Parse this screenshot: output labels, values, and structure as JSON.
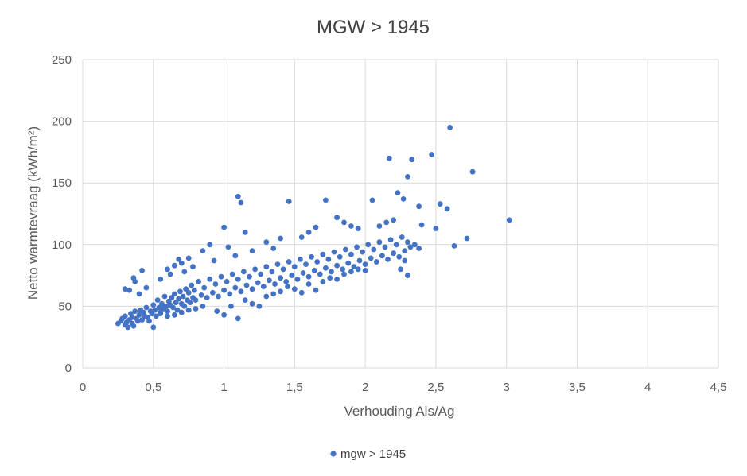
{
  "chart_data": {
    "type": "scatter",
    "title": "MGW > 1945",
    "xlabel": "Verhouding Als/Ag",
    "ylabel": "Netto warmtevraag (kWh/m²)",
    "xlim": [
      0,
      4.5
    ],
    "ylim": [
      0,
      250
    ],
    "x_ticks": [
      "0",
      "0,5",
      "1",
      "1,5",
      "2",
      "2,5",
      "3",
      "3,5",
      "4",
      "4,5"
    ],
    "y_ticks": [
      "0",
      "50",
      "100",
      "150",
      "200",
      "250"
    ],
    "x_tick_values": [
      0,
      0.5,
      1,
      1.5,
      2,
      2.5,
      3,
      3.5,
      4,
      4.5
    ],
    "y_tick_values": [
      0,
      50,
      100,
      150,
      200,
      250
    ],
    "grid": true,
    "legend_position": "bottom",
    "series": [
      {
        "name": "mgw > 1945",
        "color": "#4472c4",
        "points": [
          [
            0.25,
            36
          ],
          [
            0.27,
            38
          ],
          [
            0.28,
            40
          ],
          [
            0.3,
            35
          ],
          [
            0.3,
            42
          ],
          [
            0.31,
            37
          ],
          [
            0.32,
            33
          ],
          [
            0.33,
            39
          ],
          [
            0.34,
            44
          ],
          [
            0.35,
            36
          ],
          [
            0.35,
            41
          ],
          [
            0.36,
            34
          ],
          [
            0.37,
            46
          ],
          [
            0.38,
            40
          ],
          [
            0.39,
            38
          ],
          [
            0.4,
            43
          ],
          [
            0.41,
            47
          ],
          [
            0.42,
            39
          ],
          [
            0.43,
            45
          ],
          [
            0.44,
            42
          ],
          [
            0.45,
            49
          ],
          [
            0.46,
            41
          ],
          [
            0.47,
            38
          ],
          [
            0.48,
            46
          ],
          [
            0.49,
            44
          ],
          [
            0.5,
            51
          ],
          [
            0.5,
            33
          ],
          [
            0.51,
            47
          ],
          [
            0.52,
            42
          ],
          [
            0.53,
            55
          ],
          [
            0.54,
            49
          ],
          [
            0.55,
            45
          ],
          [
            0.56,
            52
          ],
          [
            0.57,
            48
          ],
          [
            0.58,
            58
          ],
          [
            0.59,
            50
          ],
          [
            0.6,
            46
          ],
          [
            0.61,
            54
          ],
          [
            0.62,
            51
          ],
          [
            0.63,
            57
          ],
          [
            0.64,
            49
          ],
          [
            0.65,
            60
          ],
          [
            0.66,
            53
          ],
          [
            0.67,
            47
          ],
          [
            0.68,
            56
          ],
          [
            0.69,
            62
          ],
          [
            0.7,
            52
          ],
          [
            0.71,
            58
          ],
          [
            0.72,
            50
          ],
          [
            0.73,
            64
          ],
          [
            0.74,
            55
          ],
          [
            0.75,
            61
          ],
          [
            0.76,
            53
          ],
          [
            0.77,
            67
          ],
          [
            0.78,
            57
          ],
          [
            0.79,
            63
          ],
          [
            0.8,
            55
          ],
          [
            0.82,
            70
          ],
          [
            0.84,
            59
          ],
          [
            0.86,
            65
          ],
          [
            0.88,
            57
          ],
          [
            0.9,
            72
          ],
          [
            0.92,
            61
          ],
          [
            0.94,
            68
          ],
          [
            0.96,
            58
          ],
          [
            0.98,
            74
          ],
          [
            1.0,
            63
          ],
          [
            1.02,
            70
          ],
          [
            1.04,
            60
          ],
          [
            1.06,
            76
          ],
          [
            1.08,
            65
          ],
          [
            1.1,
            72
          ],
          [
            1.12,
            62
          ],
          [
            1.14,
            78
          ],
          [
            1.16,
            67
          ],
          [
            1.18,
            74
          ],
          [
            1.2,
            64
          ],
          [
            1.22,
            80
          ],
          [
            1.24,
            69
          ],
          [
            1.26,
            76
          ],
          [
            1.28,
            66
          ],
          [
            1.3,
            82
          ],
          [
            1.32,
            71
          ],
          [
            1.34,
            78
          ],
          [
            1.36,
            68
          ],
          [
            1.38,
            84
          ],
          [
            1.4,
            73
          ],
          [
            1.42,
            80
          ],
          [
            1.44,
            70
          ],
          [
            1.46,
            86
          ],
          [
            1.48,
            75
          ],
          [
            1.5,
            82
          ],
          [
            1.52,
            72
          ],
          [
            1.54,
            88
          ],
          [
            1.56,
            77
          ],
          [
            1.58,
            84
          ],
          [
            1.6,
            74
          ],
          [
            1.62,
            90
          ],
          [
            1.64,
            79
          ],
          [
            1.66,
            86
          ],
          [
            1.68,
            76
          ],
          [
            1.7,
            92
          ],
          [
            1.72,
            81
          ],
          [
            1.74,
            88
          ],
          [
            1.76,
            78
          ],
          [
            1.78,
            94
          ],
          [
            1.8,
            83
          ],
          [
            1.82,
            90
          ],
          [
            1.84,
            80
          ],
          [
            1.86,
            96
          ],
          [
            1.88,
            85
          ],
          [
            1.9,
            92
          ],
          [
            1.92,
            82
          ],
          [
            1.94,
            98
          ],
          [
            1.96,
            87
          ],
          [
            1.98,
            94
          ],
          [
            2.0,
            84
          ],
          [
            2.02,
            100
          ],
          [
            2.04,
            89
          ],
          [
            2.06,
            96
          ],
          [
            2.08,
            86
          ],
          [
            2.1,
            102
          ],
          [
            2.12,
            91
          ],
          [
            2.14,
            98
          ],
          [
            2.16,
            88
          ],
          [
            2.18,
            104
          ],
          [
            2.2,
            93
          ],
          [
            2.22,
            100
          ],
          [
            2.24,
            90
          ],
          [
            2.26,
            106
          ],
          [
            2.28,
            95
          ],
          [
            2.3,
            102
          ],
          [
            2.32,
            98
          ],
          [
            2.35,
            100
          ],
          [
            2.38,
            97
          ],
          [
            0.37,
            70
          ],
          [
            0.42,
            79
          ],
          [
            0.45,
            65
          ],
          [
            0.55,
            72
          ],
          [
            0.62,
            76
          ],
          [
            0.7,
            85
          ],
          [
            0.75,
            89
          ],
          [
            0.78,
            82
          ],
          [
            0.85,
            95
          ],
          [
            0.9,
            100
          ],
          [
            0.93,
            87
          ],
          [
            1.0,
            114
          ],
          [
            1.03,
            98
          ],
          [
            1.08,
            91
          ],
          [
            1.1,
            139
          ],
          [
            1.12,
            134
          ],
          [
            1.15,
            110
          ],
          [
            1.2,
            95
          ],
          [
            1.3,
            102
          ],
          [
            1.35,
            97
          ],
          [
            1.4,
            105
          ],
          [
            1.46,
            135
          ],
          [
            1.55,
            106
          ],
          [
            1.6,
            110
          ],
          [
            1.65,
            114
          ],
          [
            1.72,
            136
          ],
          [
            1.8,
            122
          ],
          [
            1.85,
            118
          ],
          [
            1.9,
            115
          ],
          [
            1.95,
            113
          ],
          [
            2.05,
            136
          ],
          [
            2.1,
            115
          ],
          [
            2.15,
            118
          ],
          [
            2.17,
            170
          ],
          [
            2.2,
            120
          ],
          [
            2.23,
            142
          ],
          [
            2.27,
            137
          ],
          [
            2.3,
            155
          ],
          [
            2.33,
            169
          ],
          [
            2.38,
            131
          ],
          [
            2.4,
            116
          ],
          [
            2.47,
            173
          ],
          [
            2.5,
            113
          ],
          [
            2.53,
            133
          ],
          [
            2.58,
            129
          ],
          [
            2.6,
            195
          ],
          [
            2.63,
            99
          ],
          [
            2.72,
            105
          ],
          [
            2.76,
            159
          ],
          [
            3.02,
            120
          ],
          [
            2.25,
            80
          ],
          [
            2.28,
            87
          ],
          [
            2.3,
            75
          ],
          [
            0.95,
            46
          ],
          [
            1.0,
            43
          ],
          [
            1.05,
            50
          ],
          [
            1.1,
            40
          ],
          [
            1.15,
            55
          ],
          [
            1.2,
            52
          ],
          [
            1.25,
            50
          ],
          [
            1.3,
            58
          ],
          [
            1.35,
            60
          ],
          [
            1.4,
            62
          ],
          [
            1.45,
            66
          ],
          [
            1.5,
            64
          ],
          [
            1.55,
            61
          ],
          [
            1.6,
            68
          ],
          [
            1.65,
            63
          ],
          [
            1.7,
            70
          ],
          [
            1.75,
            73
          ],
          [
            1.8,
            72
          ],
          [
            1.85,
            76
          ],
          [
            1.9,
            78
          ],
          [
            1.95,
            80
          ],
          [
            2.0,
            79
          ],
          [
            0.55,
            44
          ],
          [
            0.6,
            42
          ],
          [
            0.65,
            43
          ],
          [
            0.7,
            45
          ],
          [
            0.75,
            47
          ],
          [
            0.8,
            48
          ],
          [
            0.85,
            50
          ],
          [
            0.3,
            64
          ],
          [
            0.33,
            63
          ],
          [
            0.36,
            73
          ],
          [
            0.4,
            60
          ],
          [
            0.6,
            80
          ],
          [
            0.65,
            83
          ],
          [
            0.68,
            88
          ],
          [
            0.72,
            78
          ]
        ]
      }
    ]
  }
}
